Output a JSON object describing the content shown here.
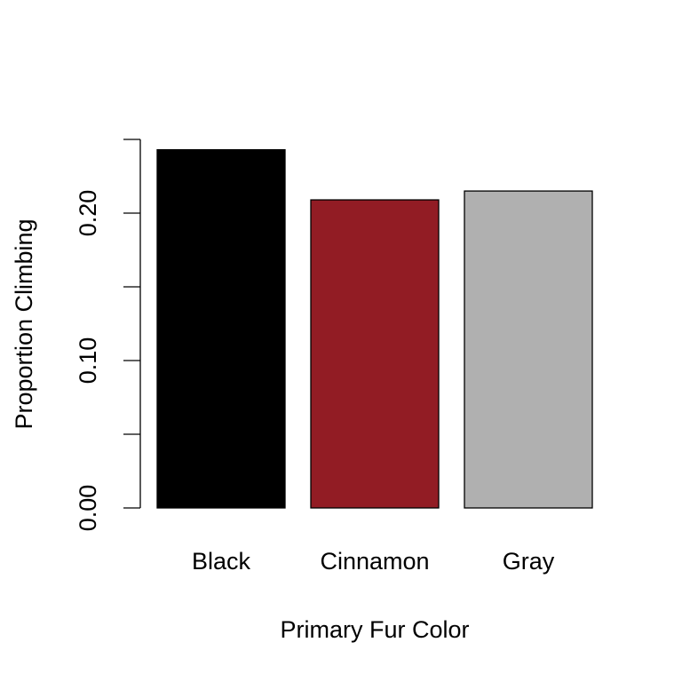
{
  "chart_data": {
    "type": "bar",
    "title": "",
    "xlabel": "Primary Fur Color",
    "ylabel": "Proportion Climbing",
    "categories": [
      "Black",
      "Cinnamon",
      "Gray"
    ],
    "values": [
      0.243,
      0.209,
      0.215
    ],
    "colors": [
      "#000000",
      "#921C24",
      "#B0B0B0"
    ],
    "ylim": [
      0,
      0.25
    ],
    "yticks": [
      0,
      0.05,
      0.1,
      0.15,
      0.2,
      0.25
    ],
    "ytick_labels": [
      "0.00",
      "",
      "0.10",
      "",
      "0.20",
      ""
    ],
    "grid": false,
    "legend": false
  }
}
